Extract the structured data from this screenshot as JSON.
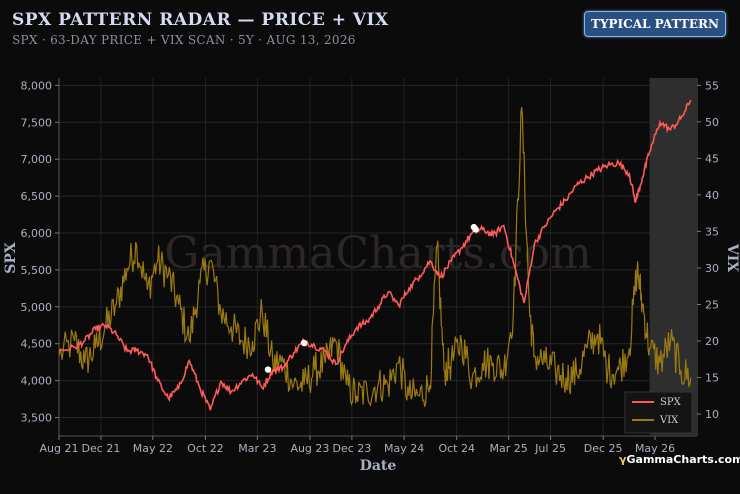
{
  "header": {
    "title": "SPX PATTERN RADAR — PRICE + VIX",
    "subtitle": "SPX · 63-DAY PRICE + VIX SCAN · 5Y · AUG 13, 2026",
    "badge": "TYPICAL PATTERN"
  },
  "watermark": "GammaCharts.com",
  "brand": {
    "icon": "gamma-symbol",
    "text": "GammaCharts.com"
  },
  "colors": {
    "spx": "#ff5a5a",
    "vix": "#9a7a12",
    "highlight": "#2e2e2e",
    "marker": "#ffffff"
  },
  "chart_data": {
    "type": "line",
    "xlabel": "Date",
    "ylabel": "SPX",
    "y2label": "VIX",
    "x_ticks": [
      "Aug 21",
      "Dec 21",
      "May 22",
      "Oct 22",
      "Mar 23",
      "Aug 23",
      "Dec 23",
      "May 24",
      "Oct 24",
      "Mar 25",
      "Jul 25",
      "Dec 25",
      "May 26"
    ],
    "y_ticks": [
      "3,500",
      "4,000",
      "4,500",
      "5,000",
      "5,500",
      "6,000",
      "6,500",
      "7,000",
      "7,500",
      "8,000"
    ],
    "y2_ticks": [
      "10",
      "15",
      "20",
      "25",
      "30",
      "35",
      "40",
      "45",
      "50",
      "55"
    ],
    "ylim": [
      3250,
      8100
    ],
    "y2lim": [
      7,
      56
    ],
    "xlim": [
      "2021-08-01",
      "2026-08-31"
    ],
    "highlight_range": [
      "2026-04-15",
      "2026-08-31"
    ],
    "legend_position": "bottom-right",
    "grid": true,
    "series": [
      {
        "name": "SPX",
        "axis": "left",
        "points": [
          [
            "2021-08-01",
            4400
          ],
          [
            "2021-09-15",
            4450
          ],
          [
            "2021-10-15",
            4540
          ],
          [
            "2021-11-15",
            4700
          ],
          [
            "2021-12-15",
            4750
          ],
          [
            "2022-01-15",
            4620
          ],
          [
            "2022-02-15",
            4400
          ],
          [
            "2022-03-15",
            4410
          ],
          [
            "2022-04-15",
            4350
          ],
          [
            "2022-05-15",
            4000
          ],
          [
            "2022-06-15",
            3760
          ],
          [
            "2022-07-15",
            3900
          ],
          [
            "2022-08-15",
            4270
          ],
          [
            "2022-09-15",
            3900
          ],
          [
            "2022-10-15",
            3600
          ],
          [
            "2022-11-15",
            3990
          ],
          [
            "2022-12-15",
            3850
          ],
          [
            "2023-01-15",
            3990
          ],
          [
            "2023-02-15",
            4090
          ],
          [
            "2023-03-15",
            3900
          ],
          [
            "2023-04-15",
            4140
          ],
          [
            "2023-05-15",
            4180
          ],
          [
            "2023-06-15",
            4380
          ],
          [
            "2023-07-15",
            4540
          ],
          [
            "2023-08-15",
            4470
          ],
          [
            "2023-09-15",
            4400
          ],
          [
            "2023-10-15",
            4220
          ],
          [
            "2023-11-15",
            4500
          ],
          [
            "2023-12-15",
            4720
          ],
          [
            "2024-01-15",
            4800
          ],
          [
            "2024-02-15",
            5000
          ],
          [
            "2024-03-15",
            5200
          ],
          [
            "2024-04-15",
            5020
          ],
          [
            "2024-05-15",
            5250
          ],
          [
            "2024-06-15",
            5420
          ],
          [
            "2024-07-15",
            5620
          ],
          [
            "2024-08-15",
            5400
          ],
          [
            "2024-09-15",
            5620
          ],
          [
            "2024-10-15",
            5800
          ],
          [
            "2024-11-15",
            6000
          ],
          [
            "2024-12-15",
            6050
          ],
          [
            "2025-01-15",
            5970
          ],
          [
            "2025-02-15",
            6100
          ],
          [
            "2025-03-15",
            5600
          ],
          [
            "2025-04-15",
            5050
          ],
          [
            "2025-05-15",
            5850
          ],
          [
            "2025-06-15",
            6100
          ],
          [
            "2025-07-15",
            6300
          ],
          [
            "2025-08-15",
            6450
          ],
          [
            "2025-09-15",
            6650
          ],
          [
            "2025-10-15",
            6750
          ],
          [
            "2025-11-15",
            6850
          ],
          [
            "2025-12-15",
            6920
          ],
          [
            "2026-01-15",
            6950
          ],
          [
            "2026-02-15",
            6800
          ],
          [
            "2026-03-05",
            6420
          ],
          [
            "2026-03-25",
            6750
          ],
          [
            "2026-04-15",
            7100
          ],
          [
            "2026-05-15",
            7500
          ],
          [
            "2026-06-15",
            7400
          ],
          [
            "2026-07-15",
            7550
          ],
          [
            "2026-08-13",
            7800
          ]
        ]
      },
      {
        "name": "VIX",
        "axis": "right",
        "points": [
          [
            "2021-08-01",
            18
          ],
          [
            "2021-09-15",
            20
          ],
          [
            "2021-10-15",
            17
          ],
          [
            "2021-11-15",
            19
          ],
          [
            "2021-12-15",
            22
          ],
          [
            "2022-01-15",
            25
          ],
          [
            "2022-02-15",
            30
          ],
          [
            "2022-03-15",
            33
          ],
          [
            "2022-04-15",
            27
          ],
          [
            "2022-05-15",
            31
          ],
          [
            "2022-06-15",
            29
          ],
          [
            "2022-07-15",
            25
          ],
          [
            "2022-08-15",
            20
          ],
          [
            "2022-09-15",
            28
          ],
          [
            "2022-10-15",
            31
          ],
          [
            "2022-11-15",
            24
          ],
          [
            "2022-12-15",
            22
          ],
          [
            "2023-01-15",
            20
          ],
          [
            "2023-02-15",
            20
          ],
          [
            "2023-03-15",
            24
          ],
          [
            "2023-04-15",
            17
          ],
          [
            "2023-05-15",
            17
          ],
          [
            "2023-06-15",
            14
          ],
          [
            "2023-07-15",
            14
          ],
          [
            "2023-08-15",
            16
          ],
          [
            "2023-09-15",
            17
          ],
          [
            "2023-10-15",
            20
          ],
          [
            "2023-11-15",
            14
          ],
          [
            "2023-12-15",
            12.5
          ],
          [
            "2024-01-15",
            13
          ],
          [
            "2024-02-15",
            14
          ],
          [
            "2024-03-15",
            14
          ],
          [
            "2024-04-15",
            17
          ],
          [
            "2024-05-15",
            12.5
          ],
          [
            "2024-06-15",
            12.5
          ],
          [
            "2024-07-15",
            14
          ],
          [
            "2024-08-05",
            33
          ],
          [
            "2024-08-25",
            16
          ],
          [
            "2024-09-15",
            17
          ],
          [
            "2024-10-15",
            20
          ],
          [
            "2024-11-15",
            15
          ],
          [
            "2024-12-15",
            17
          ],
          [
            "2025-01-15",
            17
          ],
          [
            "2025-02-15",
            16
          ],
          [
            "2025-03-15",
            24
          ],
          [
            "2025-04-08",
            52
          ],
          [
            "2025-05-01",
            24
          ],
          [
            "2025-05-15",
            18
          ],
          [
            "2025-06-15",
            17
          ],
          [
            "2025-07-15",
            16
          ],
          [
            "2025-08-15",
            15
          ],
          [
            "2025-09-15",
            15.5
          ],
          [
            "2025-10-15",
            19
          ],
          [
            "2025-11-15",
            21
          ],
          [
            "2025-12-15",
            16
          ],
          [
            "2026-01-15",
            16
          ],
          [
            "2026-02-15",
            19
          ],
          [
            "2026-03-10",
            30
          ],
          [
            "2026-03-25",
            25
          ],
          [
            "2026-04-15",
            19
          ],
          [
            "2026-05-15",
            17
          ],
          [
            "2026-06-15",
            20
          ],
          [
            "2026-07-15",
            16
          ],
          [
            "2026-08-13",
            15
          ]
        ]
      }
    ],
    "markers": [
      [
        "2023-04-01",
        4150
      ],
      [
        "2023-07-15",
        4510
      ],
      [
        "2024-11-20",
        6080
      ],
      [
        "2024-11-25",
        6050
      ]
    ]
  }
}
